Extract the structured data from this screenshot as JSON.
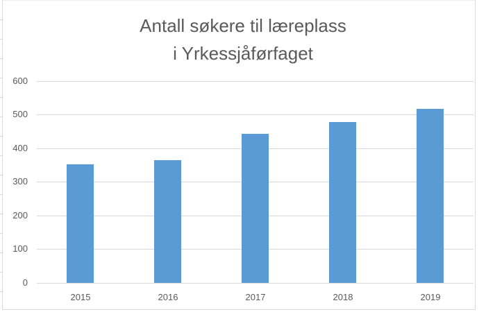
{
  "chart_data": {
    "type": "bar",
    "title": "Antall søkere til læreplass i Yrkessjåførfaget",
    "title_lines": [
      "Antall søkere til læreplass",
      "i Yrkessjåførfaget"
    ],
    "categories": [
      "2015",
      "2016",
      "2017",
      "2018",
      "2019"
    ],
    "values": [
      352,
      365,
      443,
      478,
      517
    ],
    "xlabel": "",
    "ylabel": "",
    "ylim": [
      0,
      600
    ],
    "yticks": [
      "0",
      "100",
      "200",
      "300",
      "400",
      "500",
      "600"
    ],
    "grid": true,
    "legend": "none",
    "bar_color": "#5b9bd5"
  }
}
